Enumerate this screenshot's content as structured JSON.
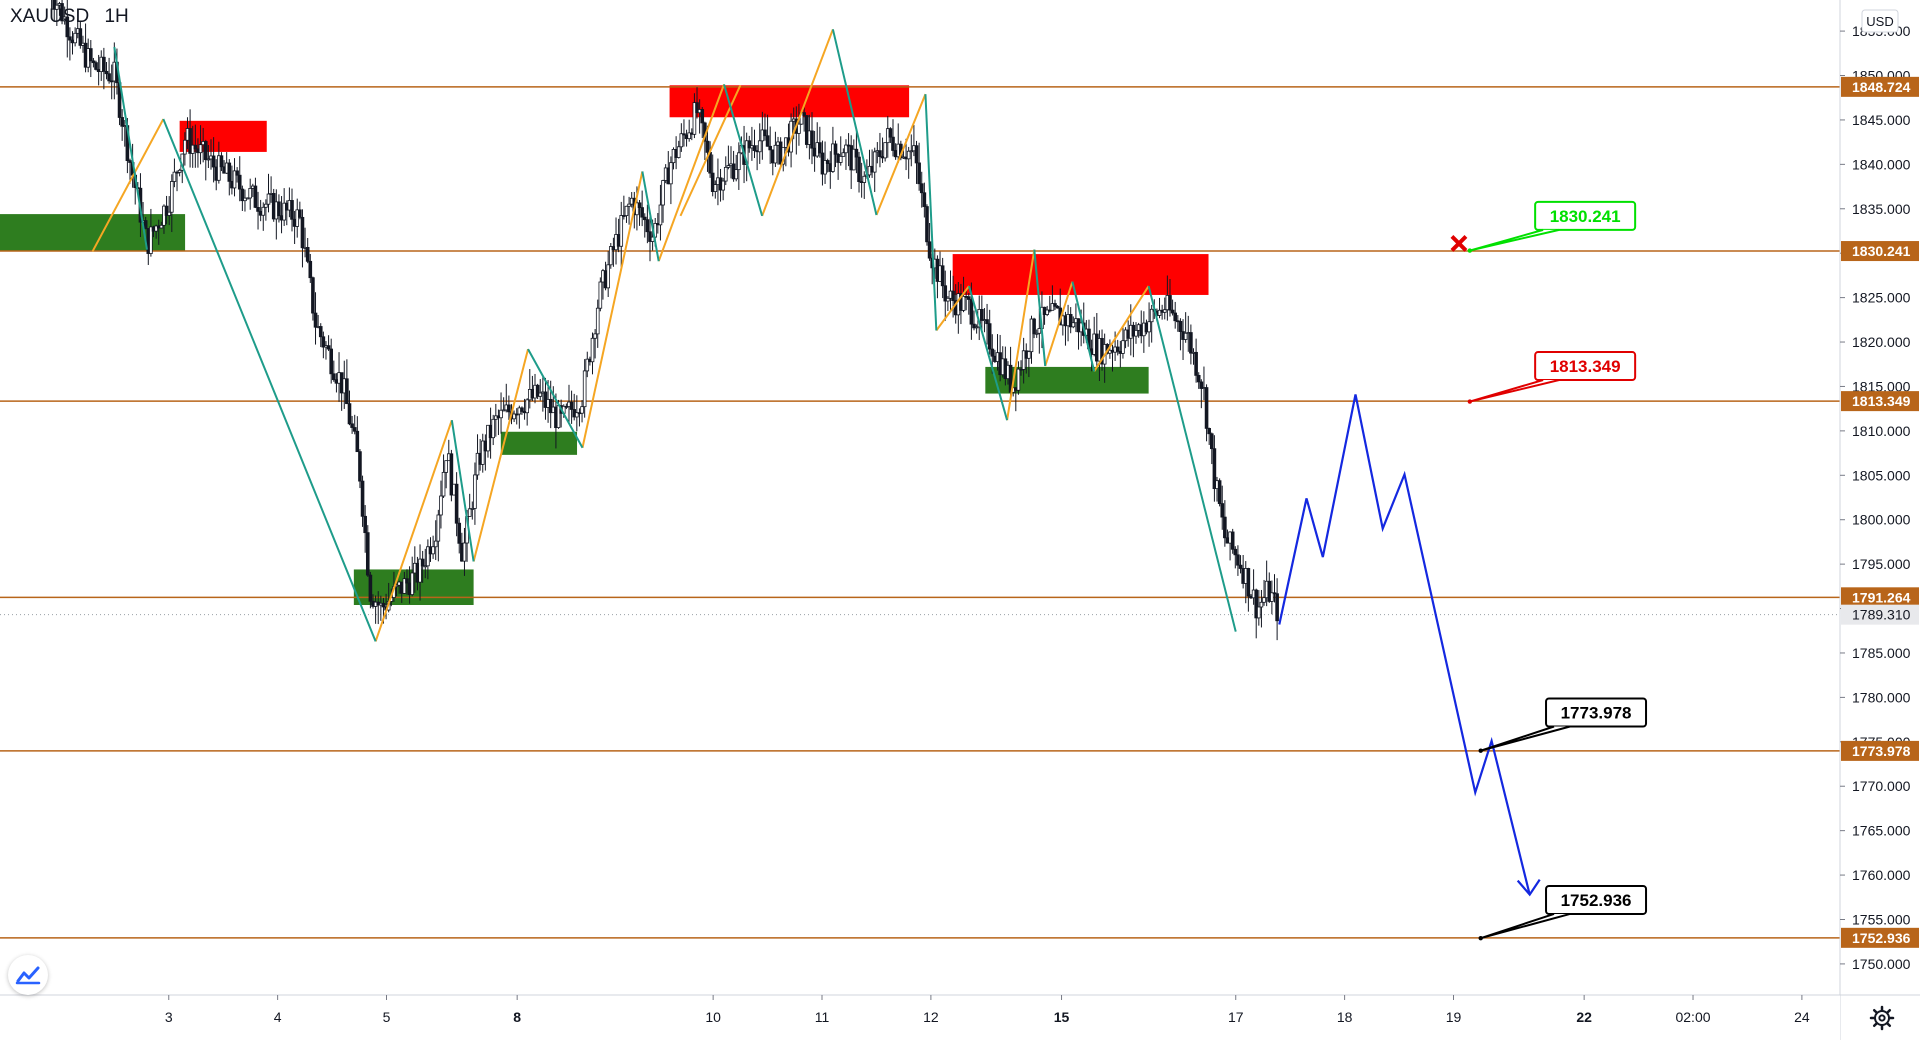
{
  "header": {
    "symbol": "XAUUSD",
    "interval": "1H"
  },
  "axis": {
    "currency": "USD",
    "settings_icon": "gear-icon",
    "logo_icon": "tradingview-logo-icon"
  },
  "colors": {
    "level_line": "#b8651a",
    "bull_line": "#f5a623",
    "bear_line": "#1e9c8a",
    "resistance": "#ff0000",
    "support": "#2e7d1f",
    "projection": "#1428e0",
    "label_green": "#00e000",
    "label_red": "#e00000",
    "label_black": "#000000"
  },
  "chart_data": {
    "type": "candlestick",
    "title": "",
    "ylim": [
      1746.5,
      1858.5
    ],
    "y_ticks": [
      1755,
      1760,
      1765,
      1770,
      1775,
      1780,
      1785,
      1790,
      1795,
      1800,
      1805,
      1810,
      1815,
      1820,
      1825,
      1830,
      1835,
      1840,
      1845,
      1850,
      1855
    ],
    "y_tick_labels": [
      "1755.000",
      "1760.000",
      "1765.000",
      "1770.000",
      "1775.000",
      "1780.000",
      "1785.000",
      "1790.000",
      "1795.000",
      "1800.000",
      "1805.000",
      "1810.000",
      "1815.000",
      "1820.000",
      "1825.000",
      "1830.000",
      "1835.000",
      "1840.000",
      "1845.000",
      "1850.000",
      "1855.000",
      "1750.000"
    ],
    "y_tick_values_extra": [
      1750
    ],
    "x_ticks": [
      {
        "label": "3",
        "x": 3.0,
        "bold": false
      },
      {
        "label": "4",
        "x": 4.0,
        "bold": false
      },
      {
        "label": "5",
        "x": 5.0,
        "bold": false
      },
      {
        "label": "8",
        "x": 6.2,
        "bold": true
      },
      {
        "label": "10",
        "x": 8.0,
        "bold": false
      },
      {
        "label": "11",
        "x": 9.0,
        "bold": false
      },
      {
        "label": "12",
        "x": 10.0,
        "bold": false
      },
      {
        "label": "15",
        "x": 11.2,
        "bold": true
      },
      {
        "label": "17",
        "x": 12.8,
        "bold": false
      },
      {
        "label": "18",
        "x": 13.8,
        "bold": false
      },
      {
        "label": "19",
        "x": 14.8,
        "bold": false
      },
      {
        "label": "22",
        "x": 16.0,
        "bold": true
      },
      {
        "label": "02:00",
        "x": 17.0,
        "bold": false
      },
      {
        "label": "24",
        "x": 18.0,
        "bold": false
      }
    ],
    "xlim": [
      1.45,
      18.35
    ],
    "levels": [
      {
        "value": 1848.724,
        "label": "1848.724"
      },
      {
        "value": 1830.241,
        "label": "1830.241"
      },
      {
        "value": 1813.349,
        "label": "1813.349"
      },
      {
        "value": 1791.264,
        "label": "1791.264"
      },
      {
        "value": 1773.978,
        "label": "1773.978"
      },
      {
        "value": 1752.936,
        "label": "1752.936"
      }
    ],
    "current_price": {
      "value": 1789.31,
      "label": "1789.310"
    },
    "zones": [
      {
        "kind": "support",
        "x0": 1.45,
        "x1": 3.15,
        "y0": 1830.3,
        "y1": 1834.4
      },
      {
        "kind": "resistance",
        "x0": 3.1,
        "x1": 3.9,
        "y0": 1841.4,
        "y1": 1844.9
      },
      {
        "kind": "support",
        "x0": 4.7,
        "x1": 5.8,
        "y0": 1790.4,
        "y1": 1794.4
      },
      {
        "kind": "support",
        "x0": 6.05,
        "x1": 6.75,
        "y0": 1807.3,
        "y1": 1809.9
      },
      {
        "kind": "resistance",
        "x0": 7.6,
        "x1": 9.8,
        "y0": 1845.3,
        "y1": 1848.9
      },
      {
        "kind": "resistance",
        "x0": 10.2,
        "x1": 12.55,
        "y0": 1825.3,
        "y1": 1829.9
      },
      {
        "kind": "support",
        "x0": 10.5,
        "x1": 12.0,
        "y0": 1814.2,
        "y1": 1817.2
      }
    ],
    "bull_segments": [
      [
        [
          2.3,
          1830.2
        ],
        [
          2.95,
          1845.1
        ]
      ],
      [
        [
          4.9,
          1786.3
        ],
        [
          5.6,
          1811.2
        ]
      ],
      [
        [
          5.8,
          1795.3
        ],
        [
          6.3,
          1819.2
        ]
      ],
      [
        [
          6.8,
          1808.1
        ],
        [
          7.35,
          1839.2
        ]
      ],
      [
        [
          7.5,
          1829.1
        ],
        [
          8.1,
          1849.0
        ]
      ],
      [
        [
          7.7,
          1834.2
        ],
        [
          8.25,
          1848.9
        ]
      ],
      [
        [
          8.45,
          1834.2
        ],
        [
          9.1,
          1855.2
        ]
      ],
      [
        [
          9.5,
          1834.3
        ],
        [
          9.95,
          1847.9
        ]
      ],
      [
        [
          10.05,
          1821.3
        ],
        [
          10.35,
          1826.3
        ]
      ],
      [
        [
          10.7,
          1811.2
        ],
        [
          10.95,
          1830.4
        ]
      ],
      [
        [
          11.05,
          1817.3
        ],
        [
          11.3,
          1826.8
        ]
      ],
      [
        [
          11.5,
          1816.7
        ],
        [
          12.0,
          1826.3
        ]
      ]
    ],
    "bear_segments": [
      [
        [
          2.5,
          1853.2
        ],
        [
          2.8,
          1830.4
        ]
      ],
      [
        [
          2.95,
          1845.1
        ],
        [
          4.9,
          1786.3
        ]
      ],
      [
        [
          5.6,
          1811.2
        ],
        [
          5.8,
          1795.3
        ]
      ],
      [
        [
          6.3,
          1819.2
        ],
        [
          6.8,
          1808.1
        ]
      ],
      [
        [
          7.35,
          1839.2
        ],
        [
          7.5,
          1829.1
        ]
      ],
      [
        [
          8.1,
          1849.0
        ],
        [
          8.45,
          1834.2
        ]
      ],
      [
        [
          9.1,
          1855.2
        ],
        [
          9.5,
          1834.3
        ]
      ],
      [
        [
          9.95,
          1847.9
        ],
        [
          10.05,
          1821.3
        ]
      ],
      [
        [
          10.35,
          1826.3
        ],
        [
          10.7,
          1811.2
        ]
      ],
      [
        [
          10.95,
          1830.4
        ],
        [
          11.05,
          1817.3
        ]
      ],
      [
        [
          11.3,
          1826.8
        ],
        [
          11.5,
          1816.7
        ]
      ],
      [
        [
          12.0,
          1826.3
        ],
        [
          12.8,
          1787.4
        ]
      ]
    ],
    "projection": [
      [
        13.2,
        1788.2
      ],
      [
        13.45,
        1802.4
      ],
      [
        13.6,
        1795.8
      ],
      [
        13.9,
        1814.1
      ],
      [
        14.15,
        1799.0
      ],
      [
        14.35,
        1805.1
      ],
      [
        15.0,
        1769.3
      ],
      [
        15.15,
        1775.1
      ],
      [
        15.5,
        1757.8
      ]
    ],
    "annotations": [
      {
        "text": "1830.241",
        "style": "green",
        "x": 15.55,
        "y": 1834.2,
        "anchor_x": 14.95,
        "anchor_y": 1830.3
      },
      {
        "text": "1813.349",
        "style": "red",
        "x": 15.55,
        "y": 1817.3,
        "anchor_x": 14.95,
        "anchor_y": 1813.3
      },
      {
        "text": "1773.978",
        "style": "black",
        "x": 15.65,
        "y": 1778.3,
        "anchor_x": 15.05,
        "anchor_y": 1774.0
      },
      {
        "text": "1752.936",
        "style": "black",
        "x": 15.65,
        "y": 1757.2,
        "anchor_x": 15.05,
        "anchor_y": 1752.9
      }
    ],
    "cross_marker": {
      "x": 14.85,
      "y": 1831.1
    },
    "candle_anchors": [
      [
        1.9,
        1860
      ],
      [
        2.1,
        1855
      ],
      [
        2.3,
        1851
      ],
      [
        2.5,
        1850
      ],
      [
        2.65,
        1840
      ],
      [
        2.8,
        1831
      ],
      [
        3.0,
        1836
      ],
      [
        3.15,
        1843
      ],
      [
        3.4,
        1840
      ],
      [
        3.6,
        1838
      ],
      [
        3.8,
        1836
      ],
      [
        4.0,
        1835
      ],
      [
        4.2,
        1834
      ],
      [
        4.35,
        1822
      ],
      [
        4.6,
        1815
      ],
      [
        4.75,
        1806
      ],
      [
        4.85,
        1792
      ],
      [
        4.95,
        1790
      ],
      [
        5.1,
        1792
      ],
      [
        5.3,
        1794
      ],
      [
        5.45,
        1799
      ],
      [
        5.55,
        1808
      ],
      [
        5.7,
        1796
      ],
      [
        5.85,
        1807
      ],
      [
        6.0,
        1811
      ],
      [
        6.2,
        1813
      ],
      [
        6.4,
        1814
      ],
      [
        6.6,
        1811
      ],
      [
        6.8,
        1814
      ],
      [
        6.95,
        1825
      ],
      [
        7.1,
        1831
      ],
      [
        7.25,
        1836
      ],
      [
        7.45,
        1832
      ],
      [
        7.6,
        1840
      ],
      [
        7.85,
        1846
      ],
      [
        8.0,
        1838
      ],
      [
        8.2,
        1840
      ],
      [
        8.4,
        1843
      ],
      [
        8.6,
        1841
      ],
      [
        8.8,
        1845
      ],
      [
        9.0,
        1840
      ],
      [
        9.2,
        1842
      ],
      [
        9.4,
        1838
      ],
      [
        9.6,
        1843
      ],
      [
        9.85,
        1841
      ],
      [
        10.0,
        1830
      ],
      [
        10.15,
        1825
      ],
      [
        10.35,
        1824
      ],
      [
        10.55,
        1820
      ],
      [
        10.75,
        1815
      ],
      [
        10.95,
        1822
      ],
      [
        11.15,
        1823
      ],
      [
        11.35,
        1822
      ],
      [
        11.55,
        1819
      ],
      [
        11.75,
        1820
      ],
      [
        11.95,
        1822
      ],
      [
        12.15,
        1824
      ],
      [
        12.35,
        1821
      ],
      [
        12.5,
        1815
      ],
      [
        12.6,
        1805
      ],
      [
        12.7,
        1798
      ],
      [
        12.85,
        1795
      ],
      [
        13.0,
        1790
      ],
      [
        13.1,
        1792
      ],
      [
        13.2,
        1789.3
      ]
    ]
  }
}
